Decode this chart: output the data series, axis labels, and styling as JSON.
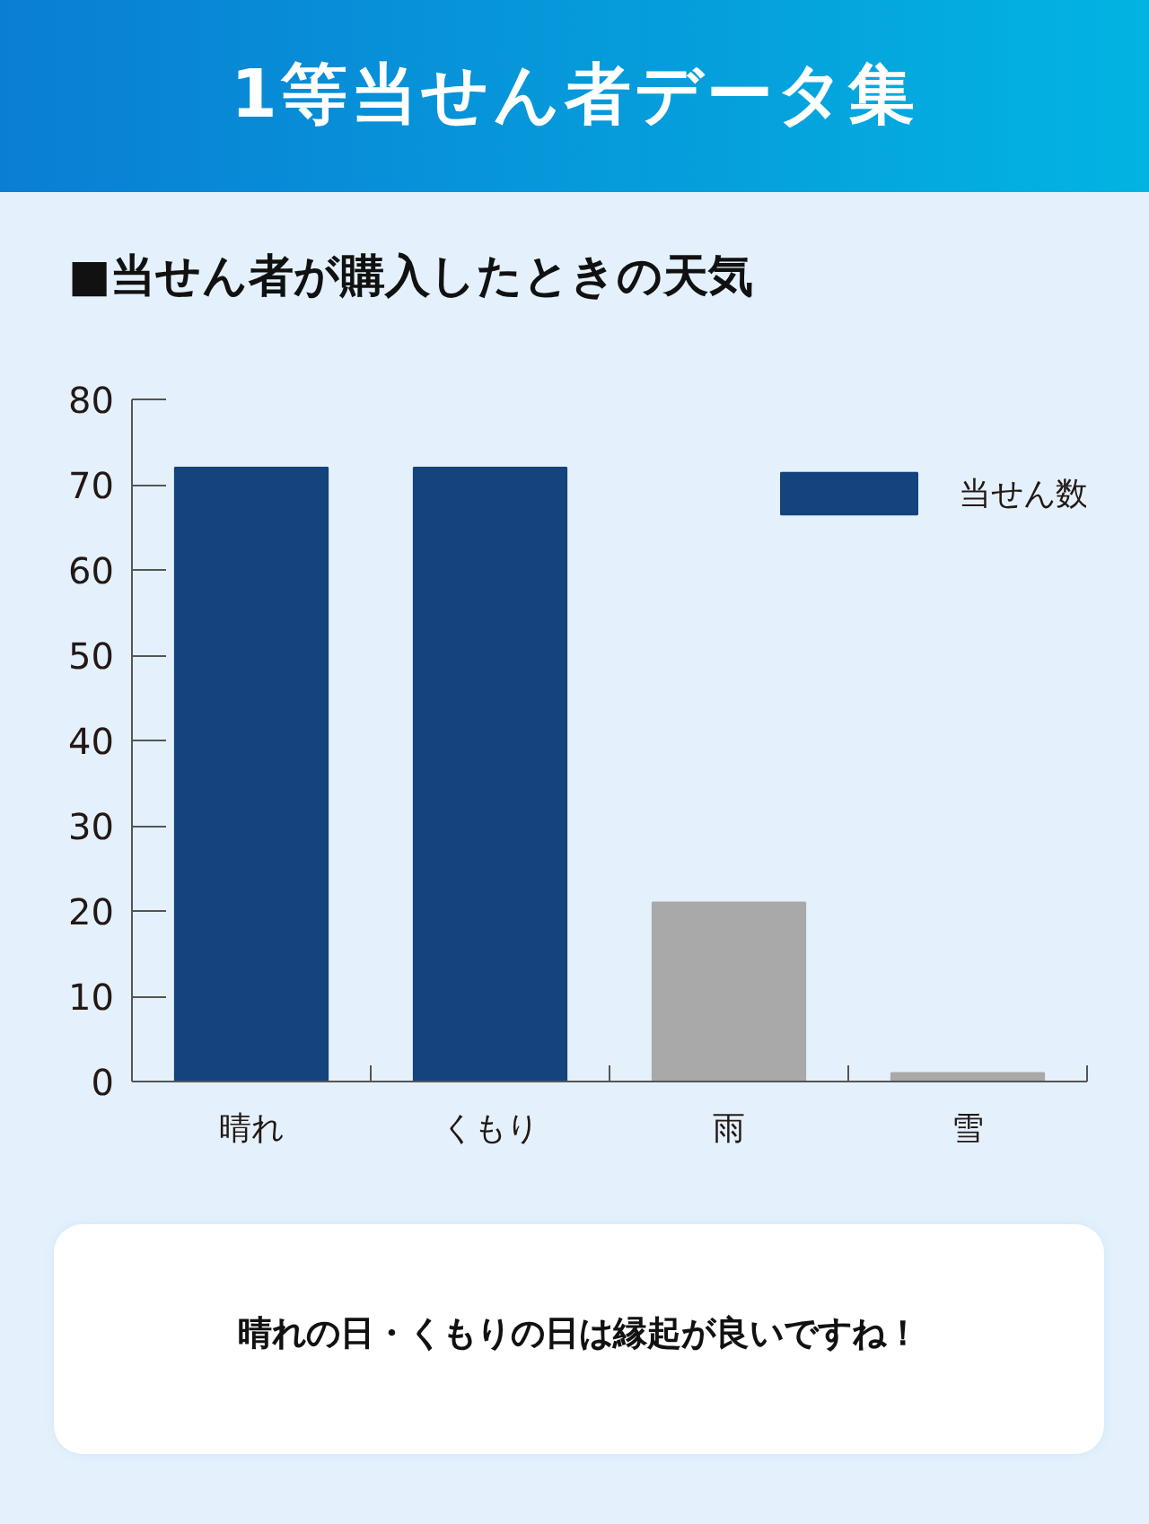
{
  "chart_data": {
    "type": "bar",
    "title": "1等当せん者データ集",
    "subtitle": "■当せん者が購入したときの天気",
    "categories": [
      "晴れ",
      "くもり",
      "雨",
      "雪"
    ],
    "series": [
      {
        "name": "当せん数",
        "color": "#14437d",
        "colors": [
          "#14437d",
          "#14437d",
          "#a9a9a9",
          "#a9a9a9"
        ],
        "values": [
          72,
          72,
          21,
          1
        ]
      }
    ],
    "ylim": [
      0,
      80
    ],
    "yticks": [
      0,
      10,
      20,
      30,
      40,
      50,
      60,
      70,
      80
    ],
    "legend": "top right",
    "annotations": [
      "晴れの日・くもりの日は縁起が良いですね！"
    ]
  }
}
